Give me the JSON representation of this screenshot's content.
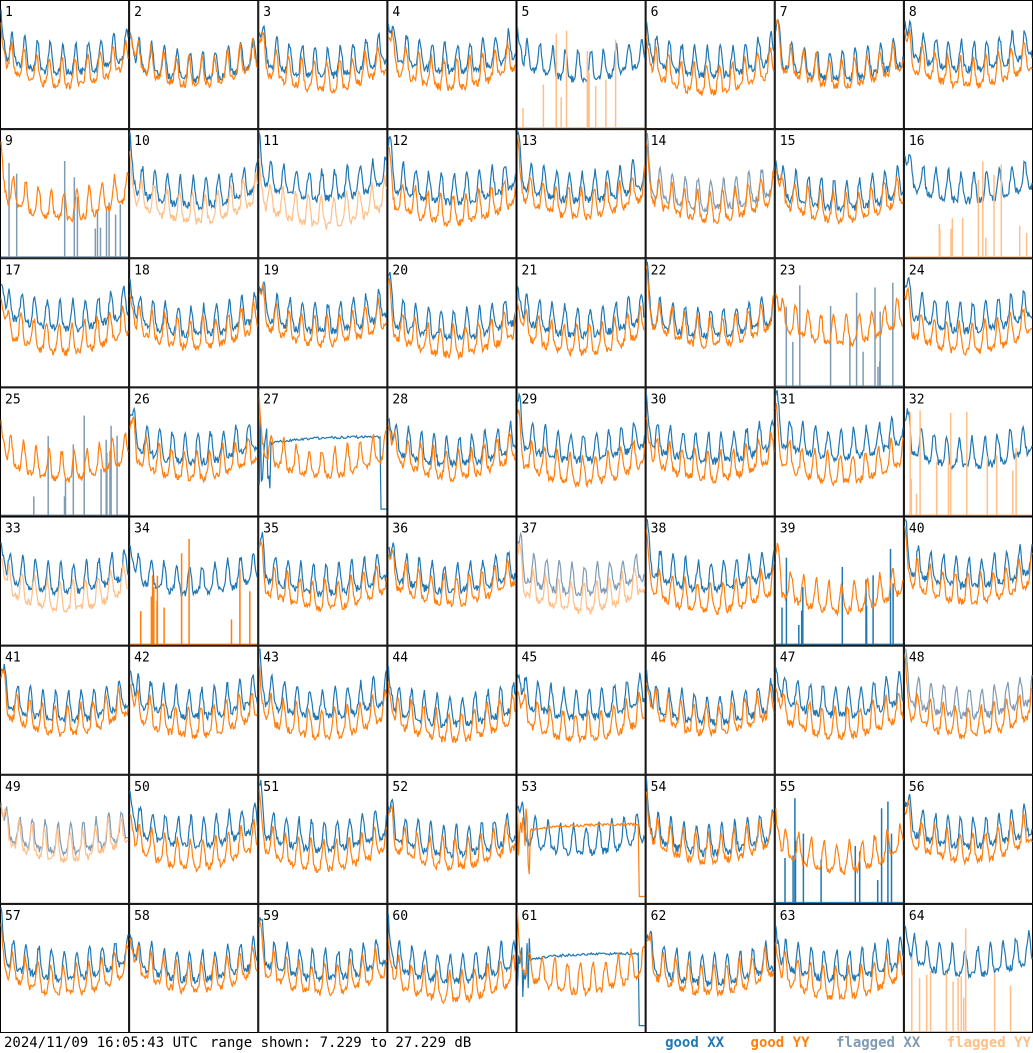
{
  "chart_data": {
    "type": "line",
    "panel_count": 64,
    "grid": [
      8,
      8
    ],
    "ylim": [
      7.229,
      27.229
    ],
    "panel_labels": [
      "1",
      "2",
      "3",
      "4",
      "5",
      "6",
      "7",
      "8",
      "9",
      "10",
      "11",
      "12",
      "13",
      "14",
      "15",
      "16",
      "17",
      "18",
      "19",
      "20",
      "21",
      "22",
      "23",
      "24",
      "25",
      "26",
      "27",
      "28",
      "29",
      "30",
      "31",
      "32",
      "33",
      "34",
      "35",
      "36",
      "37",
      "38",
      "39",
      "40",
      "41",
      "42",
      "43",
      "44",
      "45",
      "46",
      "47",
      "48",
      "49",
      "50",
      "51",
      "52",
      "53",
      "54",
      "55",
      "56",
      "57",
      "58",
      "59",
      "60",
      "61",
      "62",
      "63",
      "64"
    ],
    "legend": [
      {
        "label": "good XX",
        "color": "#1f77b4"
      },
      {
        "label": "good YY",
        "color": "#ff7f0e"
      },
      {
        "label": "flagged XX",
        "color": "#7f9bb5"
      },
      {
        "label": "flagged YY",
        "color": "#ffbf87"
      }
    ],
    "panel_status": {
      "xx_flagged": [
        9,
        14,
        23,
        25,
        37,
        48,
        49
      ],
      "yy_flagged": [
        5,
        10,
        11,
        16,
        32,
        33,
        37,
        49,
        64
      ],
      "xx_spiky": [
        9,
        23,
        25,
        39,
        55
      ],
      "yy_spiky": [
        5,
        16,
        32,
        34,
        64
      ],
      "xx_decay": [
        27,
        61
      ],
      "yy_decay": [
        53
      ]
    }
  },
  "footer": {
    "timestamp": "2024/11/09 16:05:43 UTC",
    "range_text": "range shown: 7.229 to 27.229 dB"
  }
}
